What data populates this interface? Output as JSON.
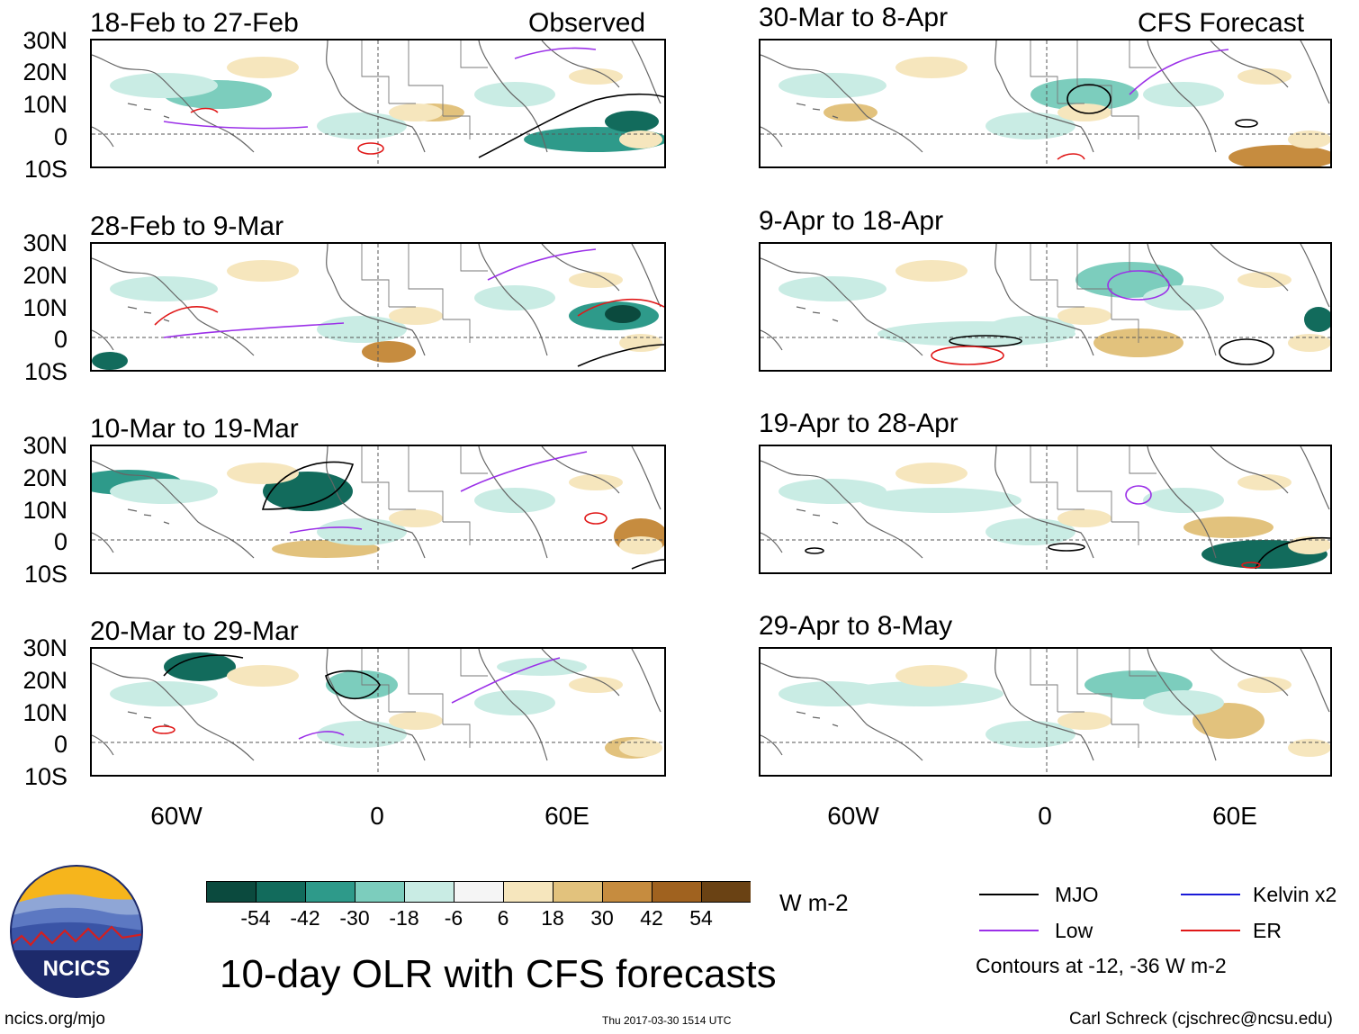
{
  "columns": {
    "left_label": "Observed",
    "right_label": "CFS Forecast"
  },
  "panels": [
    {
      "period": "18-Feb to 27-Feb",
      "kind": "observed"
    },
    {
      "period": "30-Mar to 8-Apr",
      "kind": "forecast"
    },
    {
      "period": "28-Feb to 9-Mar",
      "kind": "observed"
    },
    {
      "period": "9-Apr to 18-Apr",
      "kind": "forecast"
    },
    {
      "period": "10-Mar to 19-Mar",
      "kind": "observed"
    },
    {
      "period": "19-Apr to 28-Apr",
      "kind": "forecast"
    },
    {
      "period": "20-Mar to 29-Mar",
      "kind": "observed"
    },
    {
      "period": "29-Apr to 8-May",
      "kind": "forecast"
    }
  ],
  "lat_labels": [
    "30N",
    "20N",
    "10N",
    "0",
    "10S"
  ],
  "lon_labels": [
    "60W",
    "0",
    "60E"
  ],
  "colorbar": {
    "colors": [
      "#0b4a3e",
      "#126b5c",
      "#2e9a8a",
      "#7ccdbd",
      "#c9ece4",
      "#f5f5f5",
      "#f6e6bd",
      "#e2c27d",
      "#c68c3f",
      "#a0621f",
      "#6a4214"
    ],
    "ticks": [
      "-54",
      "-42",
      "-30",
      "-18",
      "-6",
      "6",
      "18",
      "30",
      "42",
      "54"
    ],
    "units": "W m-2"
  },
  "title": "10-day OLR with CFS forecasts",
  "legend": {
    "items": [
      {
        "label": "MJO",
        "color": "#000000"
      },
      {
        "label": "Low",
        "color": "#9b30e8"
      },
      {
        "label": "Kelvin x2",
        "color": "#1a1ad8"
      },
      {
        "label": "ER",
        "color": "#e01818"
      }
    ],
    "note": "Contours at -12, -36 W m-2"
  },
  "logo": {
    "text": "NCICS"
  },
  "footer": {
    "url": "ncics.org/mjo",
    "timestamp": "Thu 2017-03-30 1514 UTC",
    "credit": "Carl Schreck (cjschrec@ncsu.edu)"
  }
}
